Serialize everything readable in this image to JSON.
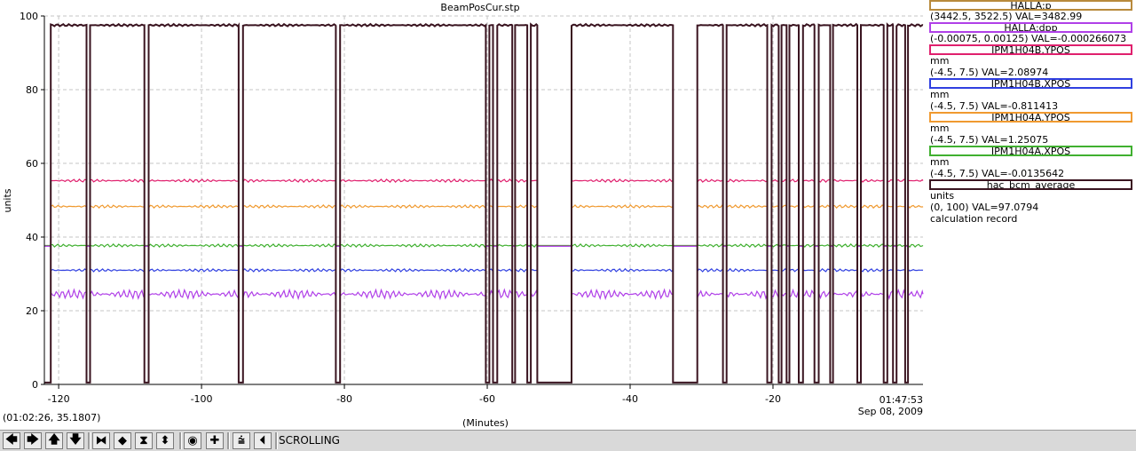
{
  "window": {
    "title": "BeamPosCur.stp"
  },
  "chart_data": {
    "type": "line",
    "title": "BeamPosCur.stp",
    "xlabel": "(Minutes)",
    "ylabel": "units",
    "xlim": [
      -122,
      1
    ],
    "ylim": [
      0,
      100
    ],
    "x_ticks": [
      -120,
      -100,
      -80,
      -60,
      -40,
      -20
    ],
    "y_ticks": [
      0,
      20,
      40,
      60,
      80,
      100
    ],
    "end_time": "01:47:53",
    "end_date": "Sep 08, 2009",
    "grid": true,
    "beam_off_intervals": [
      [
        -122,
        -121.1
      ],
      [
        -116.1,
        -115.6
      ],
      [
        -108.0,
        -107.4
      ],
      [
        -94.8,
        -94.2
      ],
      [
        -81.2,
        -80.6
      ],
      [
        -60.2,
        -59.7
      ],
      [
        -59.2,
        -58.6
      ],
      [
        -56.5,
        -56.1
      ],
      [
        -54.4,
        -53.9
      ],
      [
        -53.0,
        -48.2
      ],
      [
        -34.0,
        -30.6
      ],
      [
        -27.0,
        -26.5
      ],
      [
        -20.8,
        -20.2
      ],
      [
        -19.2,
        -18.8
      ],
      [
        -18.1,
        -17.7
      ],
      [
        -16.4,
        -15.8
      ],
      [
        -14.2,
        -13.6
      ],
      [
        -12.0,
        -11.6
      ],
      [
        -8.2,
        -7.7
      ],
      [
        -4.5,
        -4.0
      ],
      [
        -3.2,
        -2.7
      ],
      [
        -1.5,
        -1.1
      ]
    ],
    "series": [
      {
        "name": "HALLA:p",
        "color": "#b88a3c",
        "range": "(3442.5, 3522.5)",
        "value": "VAL=3482.99",
        "unit": "",
        "values_note_level": null
      },
      {
        "name": "HALLA:dpp",
        "color": "#b040e8",
        "range": "(-0.00075, 0.00125)",
        "value": "VAL=-0.000266073",
        "unit": "",
        "level_on": 24.5,
        "level_off": 37.5
      },
      {
        "name": "IPM1H04B.YPOS",
        "color": "#e0206e",
        "range": "(-4.5, 7.5)",
        "value": "VAL=2.08974",
        "unit": "mm",
        "level_on": 55.3,
        "level_off": 37.5
      },
      {
        "name": "IPM1H04B.XPOS",
        "color": "#3040e0",
        "range": "(-4.5, 7.5)",
        "value": "VAL=-0.811413",
        "unit": "mm",
        "level_on": 31.0,
        "level_off": 37.5
      },
      {
        "name": "IPM1H04A.YPOS",
        "color": "#f09a30",
        "range": "(-4.5, 7.5)",
        "value": "VAL=1.25075",
        "unit": "mm",
        "level_on": 48.3,
        "level_off": 37.5
      },
      {
        "name": "IPM1H04A.XPOS",
        "color": "#40b030",
        "range": "(-4.5, 7.5)",
        "value": "VAL=-0.0135642",
        "unit": "mm",
        "level_on": 37.7,
        "level_off": 37.7
      },
      {
        "name": "hac_bcm_average",
        "color": "#3a1420",
        "range": "(0, 100)",
        "value": "VAL=97.0794",
        "unit": "units",
        "extra": "calculation record",
        "level_on": 97.5,
        "level_off": 0.5
      }
    ]
  },
  "status": {
    "cursor": "(01:02:26, 35.1807)"
  },
  "toolbar": {
    "mode": "SCROLLING",
    "buttons": [
      {
        "name": "pan-left-button",
        "glyph": "🡄",
        "icon": "arrow-left-icon"
      },
      {
        "name": "pan-right-button",
        "glyph": "🡆",
        "icon": "arrow-right-icon"
      },
      {
        "name": "pan-up-button",
        "glyph": "🡅",
        "icon": "arrow-up-icon"
      },
      {
        "name": "pan-down-button",
        "glyph": "🡇",
        "icon": "arrow-down-icon"
      },
      {
        "name": "zoom-in-x-button",
        "glyph": "⧓",
        "icon": "zoom-in-x-icon"
      },
      {
        "name": "zoom-out-x-button",
        "glyph": "◆",
        "icon": "zoom-out-x-icon"
      },
      {
        "name": "zoom-in-y-button",
        "glyph": "⧗",
        "icon": "zoom-in-y-icon"
      },
      {
        "name": "zoom-out-y-button",
        "glyph": "⬍",
        "icon": "zoom-out-y-icon"
      },
      {
        "name": "reset-button",
        "glyph": "◉",
        "icon": "reset-icon"
      },
      {
        "name": "add-button",
        "glyph": "✚",
        "icon": "plus-icon"
      },
      {
        "name": "autoscale-button",
        "glyph": "⩭",
        "icon": "autoscale-icon"
      },
      {
        "name": "scroll-to-end-button",
        "glyph": "⏴",
        "icon": "scroll-end-icon"
      }
    ]
  }
}
